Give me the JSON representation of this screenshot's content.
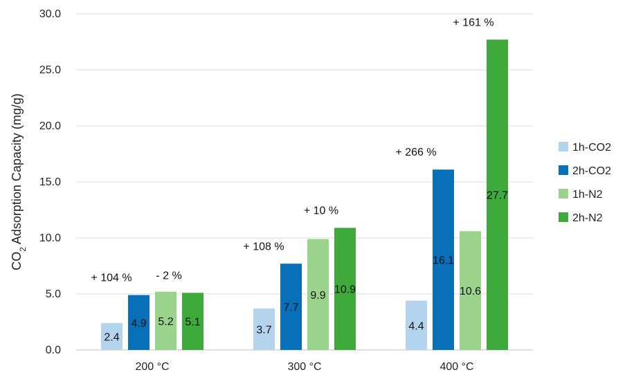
{
  "chart_data": {
    "type": "bar",
    "title": "",
    "xlabel": "",
    "ylabel": {
      "prefix": "CO",
      "subscript": "2",
      "suffix": " Adsorption Capacity (mg/g)"
    },
    "ylim": [
      0,
      30
    ],
    "yticks": [
      "0.0",
      "5.0",
      "10.0",
      "15.0",
      "20.0",
      "25.0",
      "30.0"
    ],
    "ytick_values": [
      0,
      5,
      10,
      15,
      20,
      25,
      30
    ],
    "grid": true,
    "legend_position": "right",
    "categories": [
      "200 °C",
      "300 °C",
      "400 °C"
    ],
    "series": [
      {
        "name": "1h-CO2",
        "color": "#b4d4ee",
        "values": [
          2.4,
          3.7,
          4.4
        ],
        "labels": [
          "2.4",
          "3.7",
          "4.4"
        ]
      },
      {
        "name": "2h-CO2",
        "color": "#0870b9",
        "values": [
          4.9,
          7.7,
          16.1
        ],
        "labels": [
          "4.9",
          "7.7",
          "16.1"
        ]
      },
      {
        "name": "1h-N2",
        "color": "#9ad38b",
        "values": [
          5.2,
          9.9,
          10.6
        ],
        "labels": [
          "5.2",
          "9.9",
          "10.6"
        ]
      },
      {
        "name": "2h-N2",
        "color": "#3eaa3b",
        "values": [
          5.1,
          10.9,
          27.7
        ],
        "labels": [
          "5.1",
          "10.9",
          "27.7"
        ]
      }
    ],
    "annotations": [
      {
        "text": "+ 104 %",
        "category": 0,
        "series": 1
      },
      {
        "text": "- 2 %",
        "category": 0,
        "series": 3
      },
      {
        "text": "+ 108 %",
        "category": 1,
        "series": 1
      },
      {
        "text": "+ 10 %",
        "category": 1,
        "series": 3
      },
      {
        "text": "+ 266 %",
        "category": 2,
        "series": 1
      },
      {
        "text": "+ 161 %",
        "category": 2,
        "series": 3
      }
    ]
  }
}
